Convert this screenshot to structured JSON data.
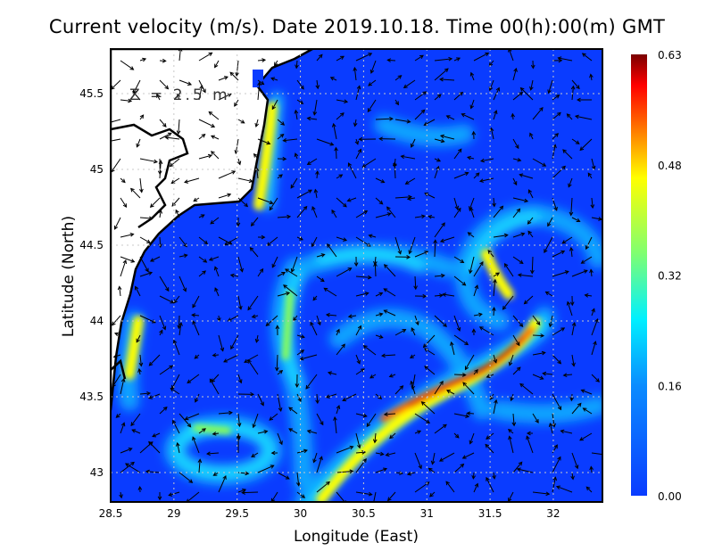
{
  "title": "Current velocity (m/s). Date 2019.10.18. Time 00(h):00(m) GMT",
  "depth_label": "Z = 2.5 m",
  "x_axis": {
    "label": "Longitude (East)",
    "ticks": [
      "28.5",
      "29",
      "29.5",
      "30",
      "30.5",
      "31",
      "31.5",
      "32"
    ]
  },
  "y_axis": {
    "label": "Latitude (North)",
    "ticks": [
      "43",
      "43.5",
      "44",
      "44.5",
      "45",
      "45.5"
    ]
  },
  "colorbar": {
    "ticks": [
      "0.00",
      "0.16",
      "0.32",
      "0.48",
      "0.63"
    ],
    "colors": [
      "#0a3cff",
      "#00e5ff",
      "#ffff00",
      "#ff2000",
      "#7a0000"
    ]
  },
  "chart_data": {
    "type": "heatmap",
    "title": "Current velocity (m/s). Date 2019.10.18. Time 00(h):00(m) GMT",
    "xlabel": "Longitude (East)",
    "ylabel": "Latitude (North)",
    "xlim": [
      28.5,
      32.4
    ],
    "ylim": [
      42.8,
      45.8
    ],
    "value_range": [
      0.0,
      0.63
    ],
    "grid": true
  }
}
